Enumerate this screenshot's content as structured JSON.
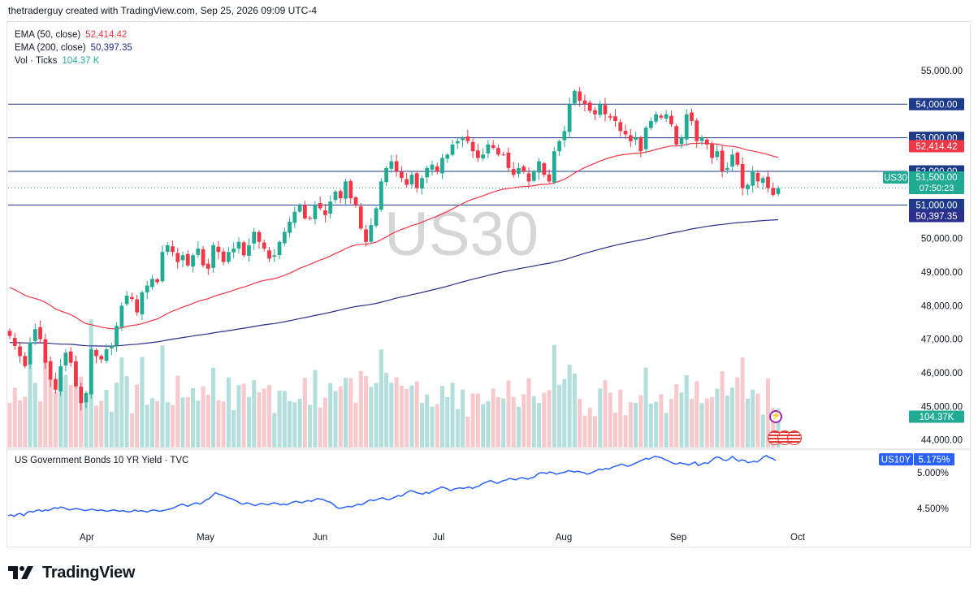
{
  "header": {
    "text": "thetraderguy created with TradingView.com, Sep 25, 2026 09:09 UTC-4"
  },
  "watermark": "US30",
  "legend": [
    {
      "label": "EMA (50, close)",
      "value": "52,414.42",
      "color": "#f23645"
    },
    {
      "label": "EMA (200, close)",
      "value": "50,397.35",
      "color": "#2a2e8c"
    },
    {
      "label": "Vol · Ticks",
      "value": "104.37 K",
      "color": "#22ab94"
    }
  ],
  "sub_legend": "US Government Bonds 10 YR Yield · TVC",
  "footer": {
    "brand": "TradingView"
  },
  "colors": {
    "up": "#22ab94",
    "down": "#f23645",
    "ema50": "#f23645",
    "ema200": "#2a2e8c",
    "hline": "#1e3a8a",
    "yield": "#2962ff",
    "vol_up": "#b2dfdb",
    "vol_down": "#f7c9cc"
  },
  "chart_data": [
    {
      "type": "candlestick",
      "symbol": "US30",
      "x_labels": [
        "Apr",
        "May",
        "Jun",
        "Jul",
        "Aug",
        "Sep",
        "Oct"
      ],
      "ylim": [
        43800,
        55700
      ],
      "y_ticks": [
        "55,000.00",
        "54,000.00",
        "53,000.00",
        "52,000.00",
        "51,000.00",
        "50,000.00",
        "49,000.00",
        "48,000.00",
        "47,000.00",
        "46,000.00",
        "45,000.00",
        "44,000.00"
      ],
      "horizontal_lines": [
        54000,
        53000,
        52000,
        51000
      ],
      "horizontal_line_labels": [
        "54,000.00",
        "53,000.00",
        "52,000.00",
        "51,000.00"
      ],
      "current_price": {
        "label": "US30",
        "value": "51,500.00",
        "countdown": "07:50:23"
      },
      "ema50_label": "52,414.42",
      "ema200_label": "50,397.35",
      "volume_label": "104.37K",
      "closes": [
        47100,
        46800,
        46500,
        46200,
        46900,
        47300,
        47000,
        46300,
        45800,
        45500,
        46200,
        46600,
        46300,
        45600,
        45100,
        45400,
        46700,
        46500,
        46400,
        46700,
        46800,
        47400,
        48000,
        48300,
        48200,
        47800,
        48400,
        48600,
        48800,
        48700,
        49600,
        49800,
        49600,
        49300,
        49500,
        49200,
        49500,
        49700,
        49200,
        49100,
        49800,
        49600,
        49300,
        49600,
        49700,
        49900,
        49500,
        49800,
        50200,
        49900,
        49700,
        49400,
        49500,
        49900,
        50200,
        50500,
        50800,
        51000,
        50600,
        50600,
        51000,
        50900,
        50700,
        51100,
        51400,
        51200,
        51700,
        51200,
        51000,
        50300,
        49900,
        50400,
        50900,
        51700,
        52100,
        52300,
        52000,
        51800,
        51600,
        51900,
        51500,
        51800,
        52100,
        52200,
        52000,
        52400,
        52500,
        52800,
        52900,
        53000,
        52900,
        52600,
        52400,
        52500,
        52800,
        52700,
        52500,
        52500,
        52100,
        51900,
        52100,
        52000,
        51700,
        52000,
        52300,
        51900,
        51700,
        52600,
        52900,
        53200,
        54000,
        54400,
        54100,
        54000,
        53800,
        53700,
        54000,
        53700,
        53600,
        53500,
        53200,
        53100,
        52900,
        53000,
        52600,
        53300,
        53500,
        53700,
        53600,
        53700,
        53400,
        52800,
        53000,
        53700,
        53500,
        52900,
        53000,
        52800,
        52400,
        52600,
        52000,
        52100,
        52500,
        52200,
        51500,
        51600,
        52000,
        51700,
        51800,
        51500,
        51300,
        51500
      ]
    },
    {
      "type": "line",
      "name": "US Government Bonds 10 YR Yield · TVC",
      "y_ticks": [
        "5.000%",
        "4.500%"
      ],
      "ylim": [
        4.25,
        5.25
      ],
      "last_label": "US10Y",
      "last_value": "5.175%",
      "values": [
        4.4,
        4.41,
        4.39,
        4.42,
        4.43,
        4.4,
        4.44,
        4.46,
        4.45,
        4.47,
        4.48,
        4.46,
        4.48,
        4.47,
        4.49,
        4.51,
        4.5,
        4.52,
        4.51,
        4.49,
        4.48,
        4.49,
        4.5,
        4.49,
        4.48,
        4.47,
        4.48,
        4.49,
        4.48,
        4.47,
        4.48,
        4.47,
        4.46,
        4.47,
        4.48,
        4.47,
        4.46,
        4.47,
        4.46,
        4.45,
        4.46,
        4.48,
        4.46,
        4.47,
        4.46,
        4.45,
        4.47,
        4.48,
        4.47,
        4.46,
        4.47,
        4.48,
        4.49,
        4.5,
        4.52,
        4.54,
        4.56,
        4.55,
        4.53,
        4.55,
        4.57,
        4.58,
        4.56,
        4.59,
        4.62,
        4.64,
        4.68,
        4.72,
        4.7,
        4.69,
        4.67,
        4.65,
        4.64,
        4.62,
        4.6,
        4.57,
        4.56,
        4.58,
        4.57,
        4.55,
        4.54,
        4.56,
        4.57,
        4.56,
        4.55,
        4.57,
        4.58,
        4.57,
        4.55,
        4.56,
        4.55,
        4.57,
        4.59,
        4.6,
        4.59,
        4.58,
        4.6,
        4.61,
        4.6,
        4.62,
        4.64,
        4.63,
        4.62,
        4.6,
        4.59,
        4.56,
        4.52,
        4.5,
        4.51,
        4.52,
        4.53,
        4.52,
        4.54,
        4.56,
        4.55,
        4.57,
        4.6,
        4.62,
        4.61,
        4.62,
        4.64,
        4.65,
        4.63,
        4.62,
        4.64,
        4.66,
        4.68,
        4.67,
        4.7,
        4.73,
        4.75,
        4.74,
        4.72,
        4.71,
        4.7,
        4.73,
        4.71,
        4.74,
        4.76,
        4.78,
        4.8,
        4.79,
        4.77,
        4.75,
        4.77,
        4.78,
        4.79,
        4.78,
        4.79,
        4.8,
        4.78,
        4.8,
        4.81,
        4.84,
        4.86,
        4.88,
        4.89,
        4.87,
        4.85,
        4.87,
        4.89,
        4.9,
        4.92,
        4.91,
        4.9,
        4.92,
        4.93,
        4.92,
        4.91,
        4.93,
        4.94,
        4.98,
        5.0,
        5.0,
        4.99,
        5.01,
        5.0,
        4.98,
        4.99,
        5.0,
        5.01,
        5.03,
        5.02,
        5.01,
        5.02,
        5.01,
        5.0,
        4.98,
        4.99,
        5.01,
        5.03,
        5.05,
        5.04,
        5.06,
        5.05,
        5.07,
        5.09,
        5.1,
        5.12,
        5.11,
        5.09,
        5.1,
        5.12,
        5.14,
        5.16,
        5.18,
        5.2,
        5.19,
        5.21,
        5.23,
        5.22,
        5.21,
        5.19,
        5.17,
        5.15,
        5.13,
        5.12,
        5.14,
        5.13,
        5.12,
        5.11,
        5.13,
        5.15,
        5.1,
        5.12,
        5.14,
        5.13,
        5.16,
        5.2,
        5.22,
        5.21,
        5.18,
        5.17,
        5.19,
        5.23,
        5.19,
        5.16,
        5.18,
        5.17,
        5.14,
        5.15,
        5.16,
        5.15,
        5.18,
        5.22,
        5.24,
        5.21,
        5.2,
        5.17
      ]
    }
  ]
}
